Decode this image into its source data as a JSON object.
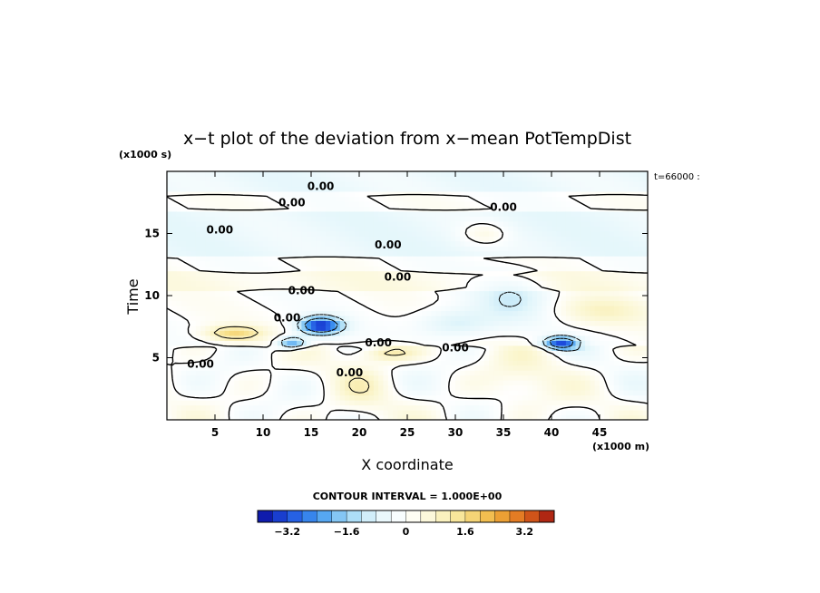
{
  "chart_data": {
    "type": "heatmap",
    "title": "x−t plot of the deviation from x−mean PotTempDist",
    "ylabel": "Time",
    "xlabel": "X coordinate",
    "y_unit": "(x1000 s)",
    "x_unit": "(x1000 m)",
    "time_stamp": "t=66000 :",
    "contour_interval": "CONTOUR INTERVAL = 1.000E+00",
    "xlim": [
      0,
      50
    ],
    "ylim": [
      0,
      20
    ],
    "x_ticks": [
      5,
      10,
      15,
      20,
      25,
      30,
      35,
      40,
      45
    ],
    "y_ticks": [
      5,
      10,
      15
    ],
    "contour_labels": [
      {
        "x": 16,
        "y": 18.8,
        "text": "0.00"
      },
      {
        "x": 13,
        "y": 17.5,
        "text": "0.00"
      },
      {
        "x": 35,
        "y": 17.1,
        "text": "0.00"
      },
      {
        "x": 5.5,
        "y": 15.3,
        "text": "0.00"
      },
      {
        "x": 23,
        "y": 14.1,
        "text": "0.00"
      },
      {
        "x": 24,
        "y": 11.5,
        "text": "0.00"
      },
      {
        "x": 14,
        "y": 10.4,
        "text": "0.00"
      },
      {
        "x": 12.5,
        "y": 8.2,
        "text": "0.00"
      },
      {
        "x": 22,
        "y": 6.2,
        "text": "0.00"
      },
      {
        "x": 30,
        "y": 5.8,
        "text": "0.00"
      },
      {
        "x": 3.5,
        "y": 4.5,
        "text": "0.00"
      },
      {
        "x": 19,
        "y": 3.8,
        "text": "0.00"
      }
    ],
    "colorbar": {
      "min": -4,
      "max": 4,
      "interval": 0.4,
      "tick_labels": [
        "−3.2",
        "−1.6",
        "0",
        "1.6",
        "3.2"
      ],
      "tick_values": [
        -3.2,
        -1.6,
        0,
        1.6,
        3.2
      ]
    },
    "color_stops": [
      "#0a0a9a",
      "#1e4fe0",
      "#3f97f0",
      "#9bd6f5",
      "#e3f6fb",
      "#ffffff",
      "#fbf6cf",
      "#f7e08a",
      "#f0b23c",
      "#e06a1c",
      "#a01010"
    ]
  }
}
